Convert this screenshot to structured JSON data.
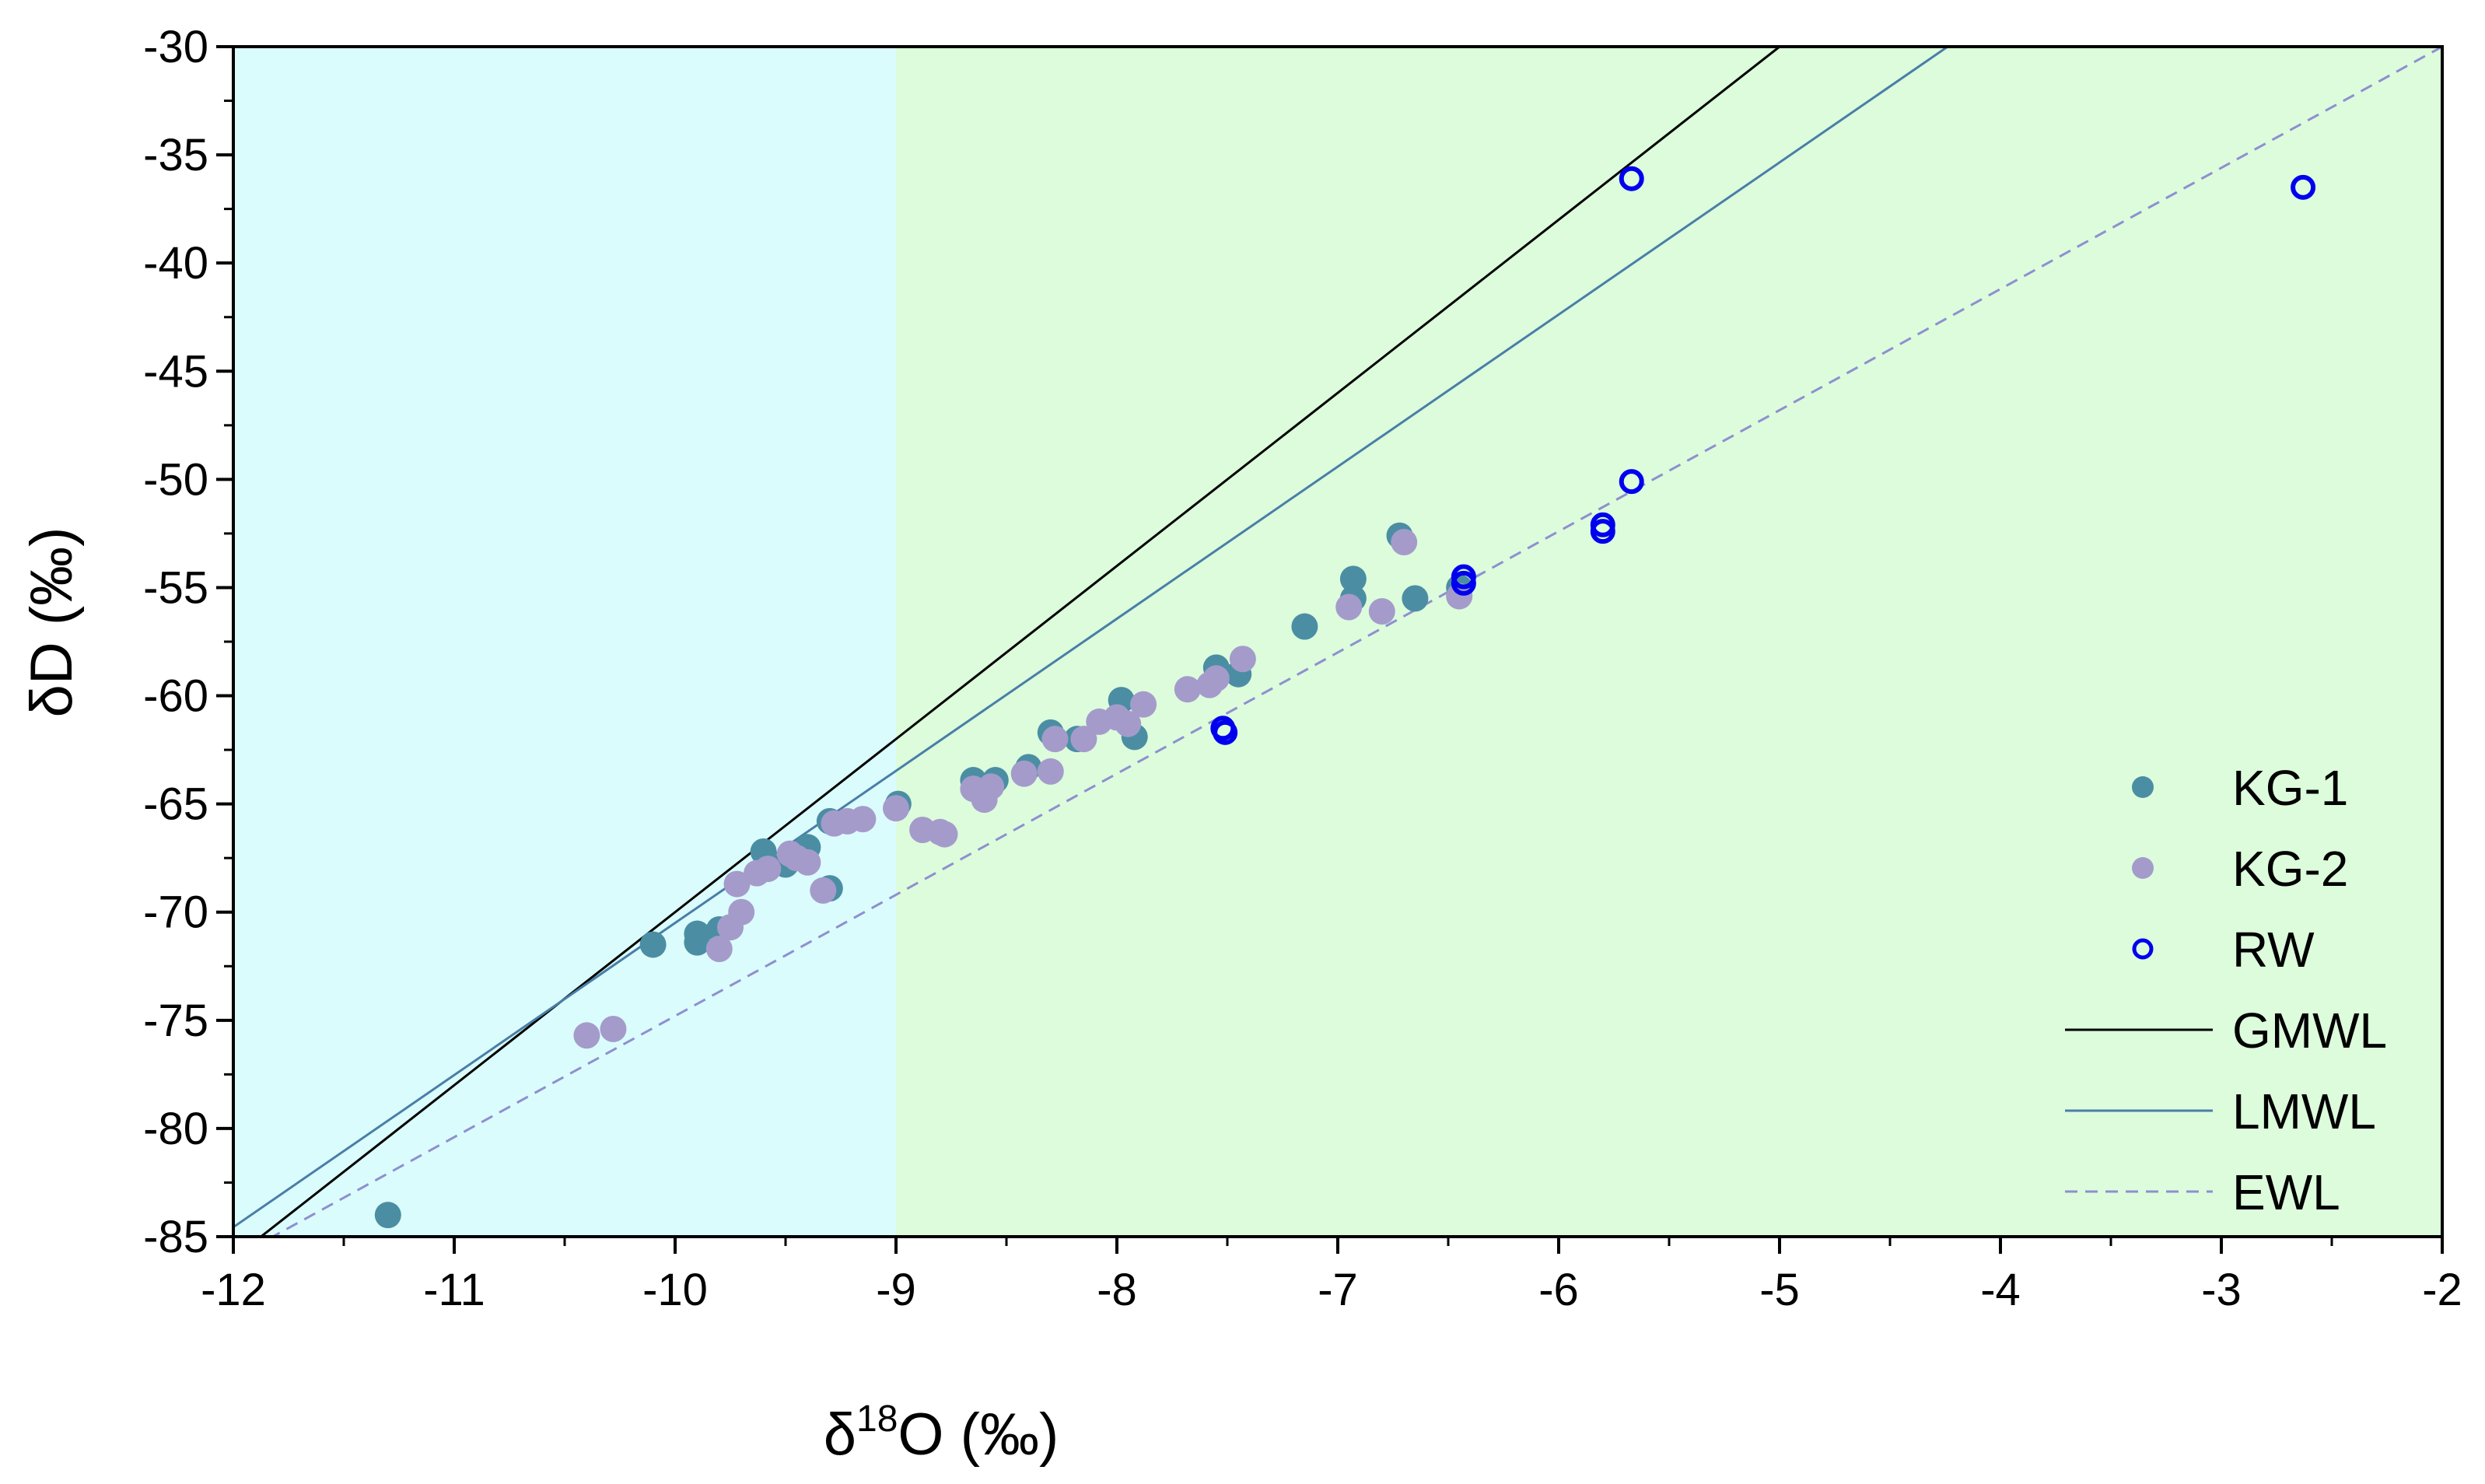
{
  "chart_data": {
    "type": "scatter",
    "title": "",
    "xlabel": {
      "prefix": "δ",
      "sup": "18",
      "suffix": "O (‰)"
    },
    "ylabel": "δD (‰)",
    "xlim": [
      -12,
      -2
    ],
    "ylim": [
      -85,
      -30
    ],
    "xticks": [
      -12,
      -11,
      -10,
      -9,
      -8,
      -7,
      -6,
      -5,
      -4,
      -3,
      -2
    ],
    "yticks": [
      -85,
      -80,
      -75,
      -70,
      -65,
      -60,
      -55,
      -50,
      -45,
      -40,
      -35,
      -30
    ],
    "regions": [
      {
        "name": "cyan-region",
        "x_from": -12,
        "x_to": -9,
        "color": "#dbfcfc"
      },
      {
        "name": "green-region",
        "x_from": -9,
        "x_to": -2,
        "color": "#dcfcdc"
      }
    ],
    "lines": [
      {
        "name": "GMWL",
        "slope": 8,
        "intercept": 10,
        "color": "#000000",
        "dash": ""
      },
      {
        "name": "LMWL",
        "slope": 7.03,
        "intercept": -0.2,
        "color": "#4a7ea8",
        "dash": ""
      },
      {
        "name": "EWL",
        "slope": 5.6,
        "intercept": -18.8,
        "color": "#8f8fd0",
        "dash": "dashed"
      }
    ],
    "series": [
      {
        "name": "KG-1",
        "marker": "filled-circle",
        "color": "#4b8ea3",
        "points": [
          [
            -11.3,
            -84.0
          ],
          [
            -10.1,
            -71.5
          ],
          [
            -9.9,
            -71.0
          ],
          [
            -9.9,
            -71.4
          ],
          [
            -9.8,
            -70.8
          ],
          [
            -9.6,
            -67.2
          ],
          [
            -9.5,
            -67.8
          ],
          [
            -9.4,
            -67.0
          ],
          [
            -9.3,
            -68.9
          ],
          [
            -9.3,
            -65.8
          ],
          [
            -8.99,
            -65.0
          ],
          [
            -8.65,
            -63.9
          ],
          [
            -8.55,
            -63.9
          ],
          [
            -8.4,
            -63.3
          ],
          [
            -8.3,
            -61.7
          ],
          [
            -8.18,
            -62.0
          ],
          [
            -7.98,
            -60.2
          ],
          [
            -7.92,
            -61.9
          ],
          [
            -7.55,
            -58.7
          ],
          [
            -7.45,
            -59.0
          ],
          [
            -7.15,
            -56.8
          ],
          [
            -6.93,
            -54.6
          ],
          [
            -6.93,
            -55.5
          ],
          [
            -6.72,
            -52.6
          ],
          [
            -6.65,
            -55.5
          ],
          [
            -6.45,
            -55.0
          ]
        ]
      },
      {
        "name": "KG-2",
        "marker": "filled-circle",
        "color": "#a49bcb",
        "points": [
          [
            -10.4,
            -75.7
          ],
          [
            -10.28,
            -75.4
          ],
          [
            -9.8,
            -71.7
          ],
          [
            -9.75,
            -70.7
          ],
          [
            -9.7,
            -70.0
          ],
          [
            -9.72,
            -68.7
          ],
          [
            -9.63,
            -68.2
          ],
          [
            -9.58,
            -68.0
          ],
          [
            -9.48,
            -67.3
          ],
          [
            -9.45,
            -67.5
          ],
          [
            -9.4,
            -67.7
          ],
          [
            -9.33,
            -69.0
          ],
          [
            -9.28,
            -65.9
          ],
          [
            -9.22,
            -65.8
          ],
          [
            -9.15,
            -65.7
          ],
          [
            -9.0,
            -65.2
          ],
          [
            -8.88,
            -66.2
          ],
          [
            -8.8,
            -66.3
          ],
          [
            -8.78,
            -66.4
          ],
          [
            -8.65,
            -64.3
          ],
          [
            -8.6,
            -64.8
          ],
          [
            -8.57,
            -64.2
          ],
          [
            -8.42,
            -63.6
          ],
          [
            -8.3,
            -63.5
          ],
          [
            -8.28,
            -62.0
          ],
          [
            -8.15,
            -62.0
          ],
          [
            -8.08,
            -61.2
          ],
          [
            -8.0,
            -61.0
          ],
          [
            -7.95,
            -61.3
          ],
          [
            -7.88,
            -60.4
          ],
          [
            -7.68,
            -59.7
          ],
          [
            -7.58,
            -59.5
          ],
          [
            -7.55,
            -59.2
          ],
          [
            -7.43,
            -58.3
          ],
          [
            -6.95,
            -55.9
          ],
          [
            -6.8,
            -56.1
          ],
          [
            -6.7,
            -52.9
          ],
          [
            -6.45,
            -55.4
          ]
        ]
      },
      {
        "name": "RW",
        "marker": "open-circle",
        "color": "#0000ee",
        "points": [
          [
            -7.52,
            -61.5
          ],
          [
            -7.51,
            -61.7
          ],
          [
            -6.43,
            -54.5
          ],
          [
            -6.43,
            -54.8
          ],
          [
            -5.8,
            -52.1
          ],
          [
            -5.8,
            -52.4
          ],
          [
            -5.67,
            -50.1
          ],
          [
            -5.67,
            -36.1
          ],
          [
            -2.63,
            -36.5
          ]
        ]
      }
    ],
    "legend": {
      "position": "bottom-right",
      "entries": [
        {
          "label": "KG-1",
          "kind": "marker",
          "series": "KG-1"
        },
        {
          "label": "KG-2",
          "kind": "marker",
          "series": "KG-2"
        },
        {
          "label": "RW",
          "kind": "marker",
          "series": "RW"
        },
        {
          "label": "GMWL",
          "kind": "line",
          "series": "GMWL"
        },
        {
          "label": "LMWL",
          "kind": "line",
          "series": "LMWL"
        },
        {
          "label": "EWL",
          "kind": "line",
          "series": "EWL"
        }
      ]
    }
  }
}
